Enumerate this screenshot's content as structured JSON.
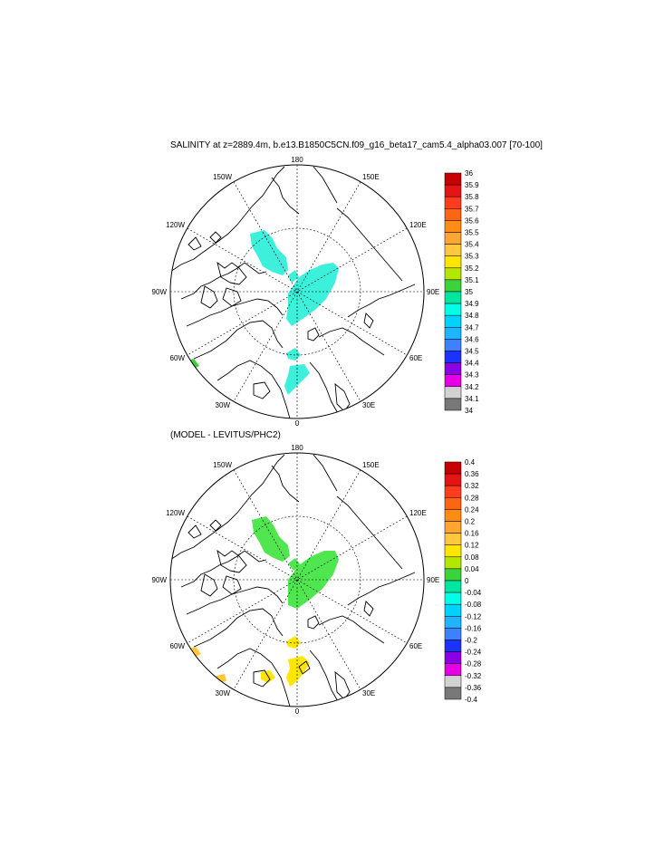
{
  "panels": [
    {
      "title": "SALINITY at z=2889.4m, b.e13.B1850C5CN.f09_g16_beta17_cam5.4_alpha03.007 [70-100]",
      "lon_labels": [
        "180",
        "150E",
        "120E",
        "90E",
        "60E",
        "30E",
        "0",
        "30W",
        "60W",
        "90W",
        "120W",
        "150W"
      ],
      "colorbar": {
        "labels": [
          "36",
          "35.9",
          "35.8",
          "35.7",
          "35.6",
          "35.5",
          "35.4",
          "35.3",
          "35.2",
          "35.1",
          "35",
          "34.9",
          "34.8",
          "34.7",
          "34.6",
          "34.5",
          "34.4",
          "34.3",
          "34.2",
          "34.1",
          "34"
        ],
        "colors": [
          "#c80000",
          "#e61414",
          "#ff3c1e",
          "#ff6414",
          "#ff8c14",
          "#ffa532",
          "#ffc83c",
          "#ffe600",
          "#b4e600",
          "#3cd23c",
          "#00e6a0",
          "#00ffe6",
          "#00d2ff",
          "#1eb4ff",
          "#3c82ff",
          "#1e32ff",
          "#8c00e6",
          "#e600e6",
          "#d2d2d2",
          "#787878"
        ]
      },
      "patch_colors": {
        "fill_main": "#3cf0dc",
        "fill_edge": "#3cd23c"
      }
    },
    {
      "title": "(MODEL - LEVITUS/PHC2)",
      "lon_labels": [
        "180",
        "150E",
        "120E",
        "90E",
        "60E",
        "30E",
        "0",
        "30W",
        "60W",
        "90W",
        "120W",
        "150W"
      ],
      "colorbar": {
        "labels": [
          "0.4",
          "0.36",
          "0.32",
          "0.28",
          "0.24",
          "0.2",
          "0.16",
          "0.12",
          "0.08",
          "0.04",
          "0",
          "-0.04",
          "-0.08",
          "-0.12",
          "-0.16",
          "-0.2",
          "-0.24",
          "-0.28",
          "-0.32",
          "-0.36",
          "-0.4"
        ],
        "colors": [
          "#c80000",
          "#e61414",
          "#ff3c1e",
          "#ff6414",
          "#ff8c14",
          "#ffa532",
          "#ffc83c",
          "#ffe600",
          "#b4e600",
          "#3cd23c",
          "#00e6a0",
          "#00ffe6",
          "#00d2ff",
          "#1eb4ff",
          "#3c82ff",
          "#1e32ff",
          "#8c00e6",
          "#e600e6",
          "#d2d2d2",
          "#787878"
        ]
      },
      "patch_colors": {
        "fill_main": "#50e650",
        "fill_yellow": "#ffe600",
        "fill_orange": "#ffc83c"
      }
    }
  ]
}
